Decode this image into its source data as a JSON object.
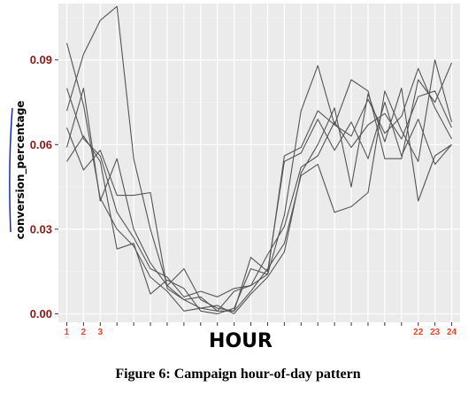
{
  "caption": "Figure 6: Campaign hour-of-day pattern",
  "chart_data": {
    "type": "line",
    "xlabel": "HOUR",
    "ylabel": "conversion_percentage",
    "x": [
      1,
      2,
      3,
      4,
      5,
      6,
      7,
      8,
      9,
      10,
      11,
      12,
      13,
      14,
      15,
      16,
      17,
      18,
      19,
      20,
      21,
      22,
      23,
      24
    ],
    "x_tick_labels": [
      "1",
      "2",
      "3",
      "",
      "",
      "",
      "",
      "",
      "",
      "",
      "",
      "",
      "",
      "",
      "",
      "",
      "",
      "",
      "",
      "",
      "",
      "22",
      "23",
      "24"
    ],
    "y_ticks": [
      0.0,
      0.03,
      0.06,
      0.09
    ],
    "y_tick_labels": [
      "0.00",
      "0.03",
      "0.06",
      "0.09"
    ],
    "ylim": [
      -0.003,
      0.11
    ],
    "xlim": [
      0.5,
      24.5
    ],
    "grid": true,
    "background": "#ebebeb",
    "line_color": "#555555",
    "ytick_color": "#8b1a1a",
    "xtick_color": "#e8442a",
    "series": [
      {
        "values": [
          0.096,
          0.074,
          0.041,
          0.03,
          0.024,
          0.013,
          0.008,
          0.001,
          0.002,
          0.001,
          0.008,
          0.01,
          0.014,
          0.035,
          0.072,
          0.088,
          0.067,
          0.083,
          0.079,
          0.055,
          0.055,
          0.083,
          0.075,
          0.089
        ]
      },
      {
        "values": [
          0.072,
          0.092,
          0.104,
          0.109,
          0.055,
          0.03,
          0.01,
          0.005,
          0.002,
          0.003,
          0.0,
          0.007,
          0.013,
          0.022,
          0.05,
          0.06,
          0.073,
          0.045,
          0.078,
          0.061,
          0.08,
          0.04,
          0.056,
          0.06
        ]
      },
      {
        "values": [
          0.066,
          0.051,
          0.058,
          0.042,
          0.042,
          0.043,
          0.009,
          0.005,
          0.006,
          0.001,
          0.001,
          0.008,
          0.016,
          0.025,
          0.049,
          0.053,
          0.036,
          0.038,
          0.043,
          0.079,
          0.065,
          0.054,
          0.09,
          0.068
        ]
      },
      {
        "values": [
          0.054,
          0.063,
          0.054,
          0.023,
          0.025,
          0.007,
          0.012,
          0.009,
          0.001,
          0.0,
          0.002,
          0.016,
          0.014,
          0.056,
          0.059,
          0.072,
          0.067,
          0.063,
          0.076,
          0.064,
          0.07,
          0.087,
          0.073,
          0.062
        ]
      },
      {
        "values": [
          0.059,
          0.08,
          0.04,
          0.055,
          0.03,
          0.018,
          0.01,
          0.016,
          0.005,
          0.002,
          0.001,
          0.02,
          0.015,
          0.054,
          0.057,
          0.069,
          0.058,
          0.068,
          0.055,
          0.075,
          0.056,
          0.069,
          0.053,
          0.06
        ]
      },
      {
        "values": [
          0.08,
          0.062,
          0.056,
          0.036,
          0.027,
          0.016,
          0.013,
          0.006,
          0.008,
          0.006,
          0.009,
          0.01,
          0.021,
          0.031,
          0.052,
          0.056,
          0.068,
          0.059,
          0.067,
          0.071,
          0.062,
          0.077,
          0.079,
          0.066
        ]
      }
    ]
  }
}
